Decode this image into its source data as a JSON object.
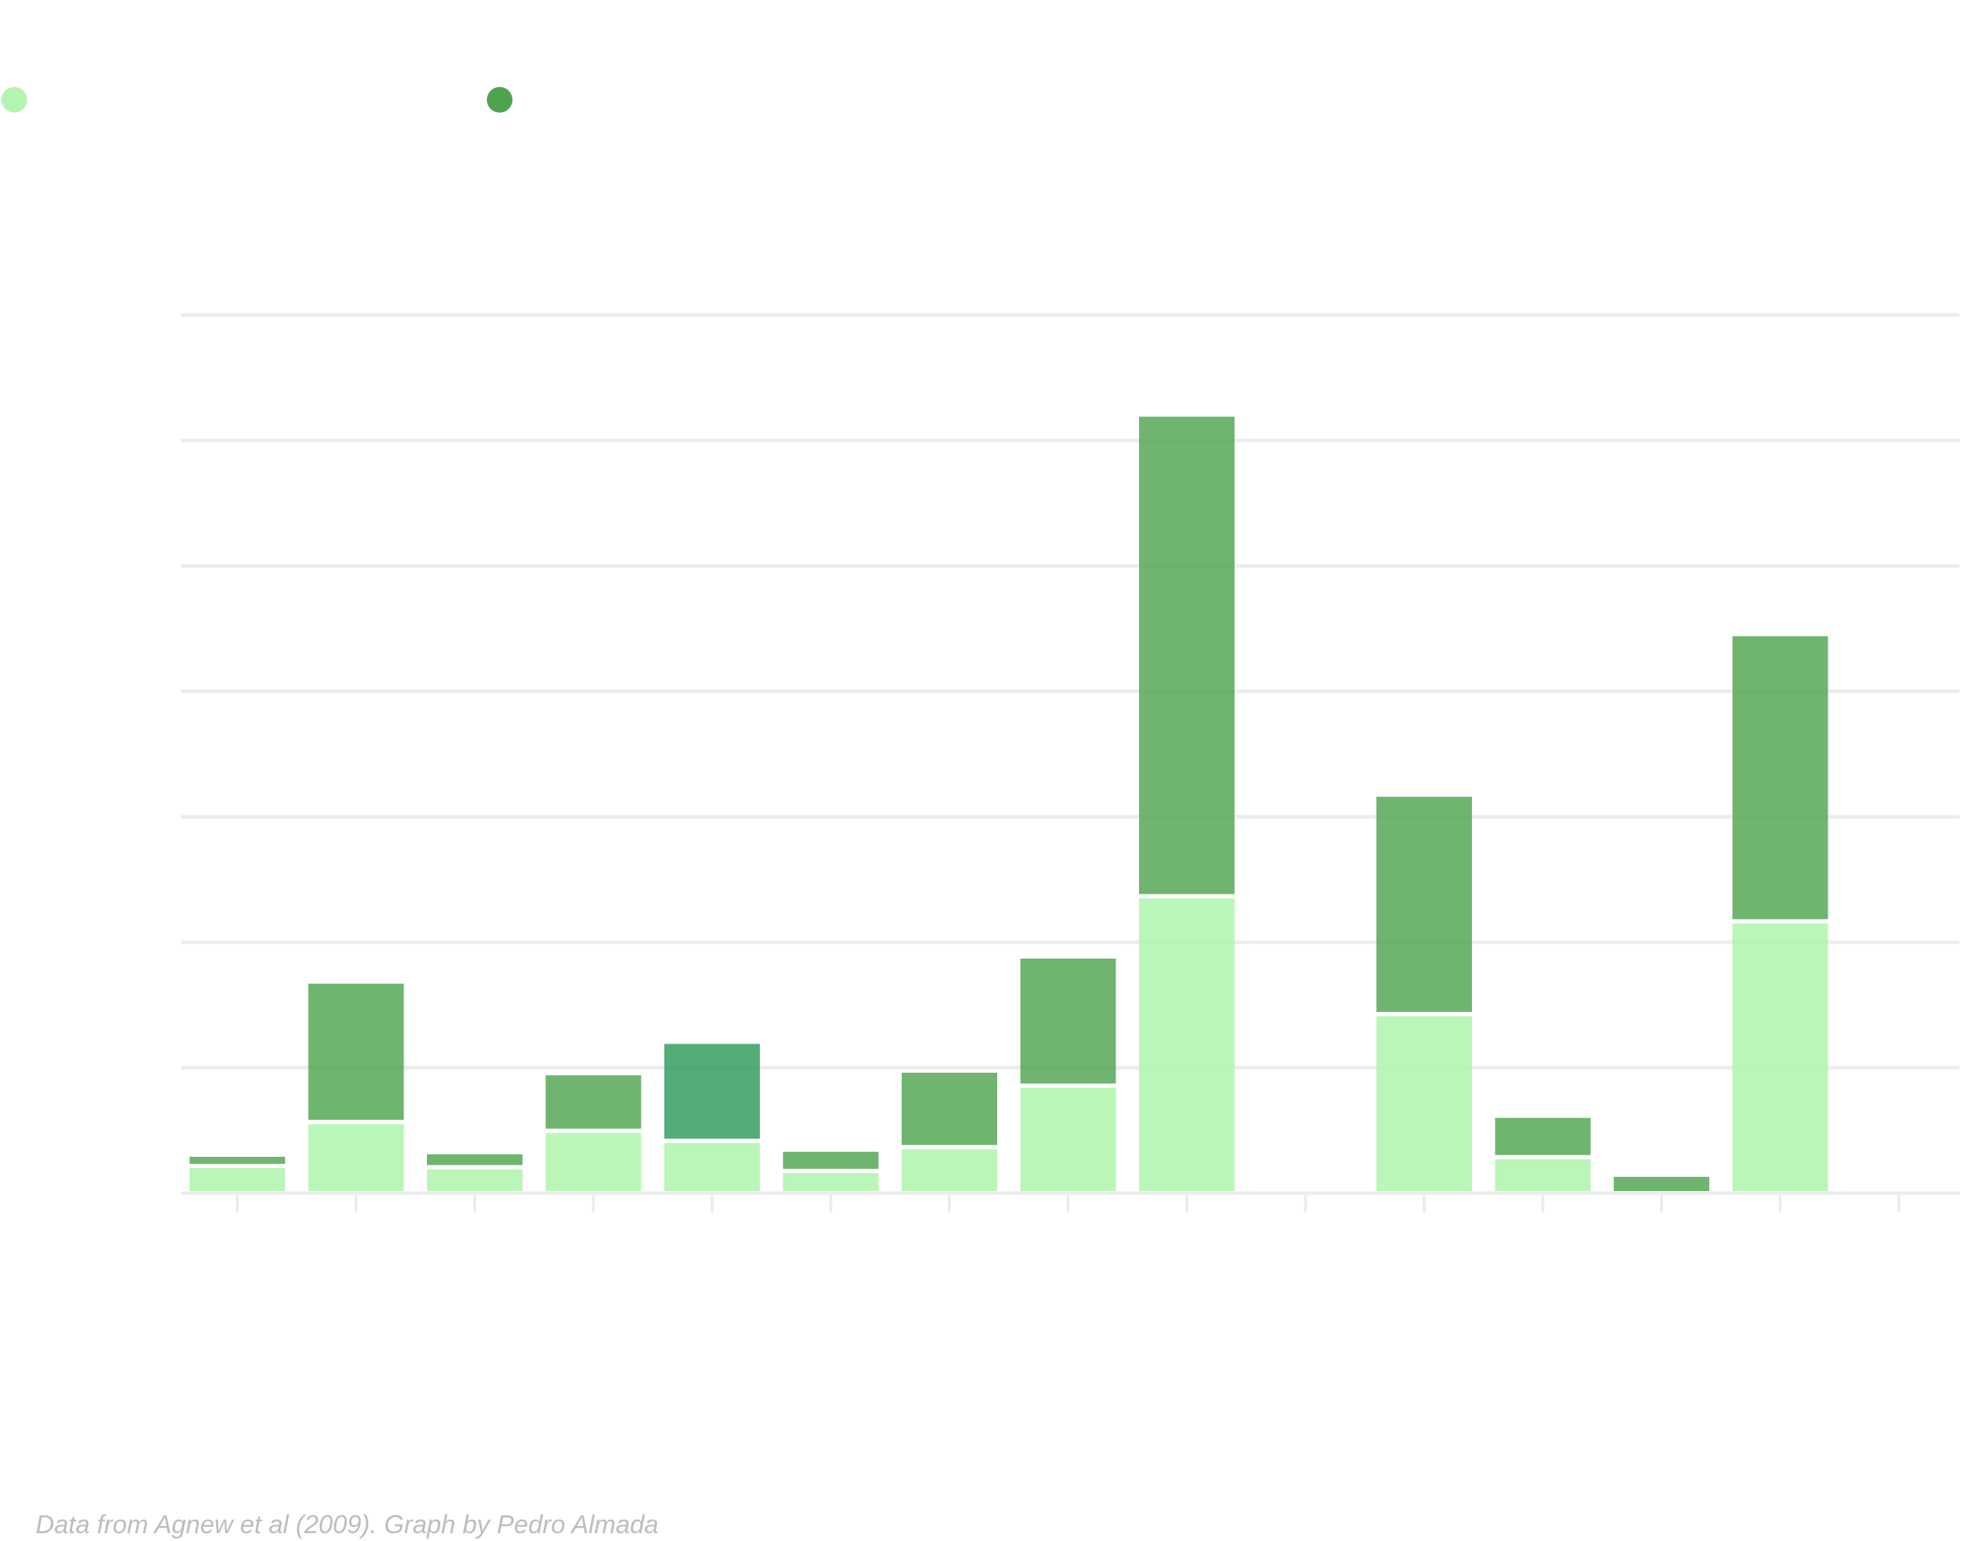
{
  "chart_data": {
    "type": "bar",
    "stacked": true,
    "title": "",
    "xlabel": "",
    "ylabel": "",
    "y_unit_note": "values in gridline units (axis labels not rendered)",
    "ylim": [
      0,
      7
    ],
    "grid": true,
    "legend_placement": "top-left",
    "slots": 15,
    "series": [
      {
        "key": "light",
        "color": "#b3f5b0",
        "values": [
          0.2,
          0.55,
          0.19,
          0.48,
          0.4,
          0.16,
          0.35,
          0.84,
          2.35,
          0,
          1.41,
          0.27,
          0,
          2.15
        ]
      },
      {
        "key": "dark",
        "color": "#4fa34f",
        "values": [
          0.09,
          1.12,
          0.12,
          0.46,
          0.79,
          0.17,
          0.61,
          1.03,
          3.84,
          0,
          1.75,
          0.33,
          0.13,
          2.29
        ]
      }
    ],
    "highlight": {
      "index": 4,
      "color": "#2e9a5a"
    }
  },
  "footer": {
    "credit": "Data from Agnew et al (2009). Graph by Pedro Almada"
  }
}
